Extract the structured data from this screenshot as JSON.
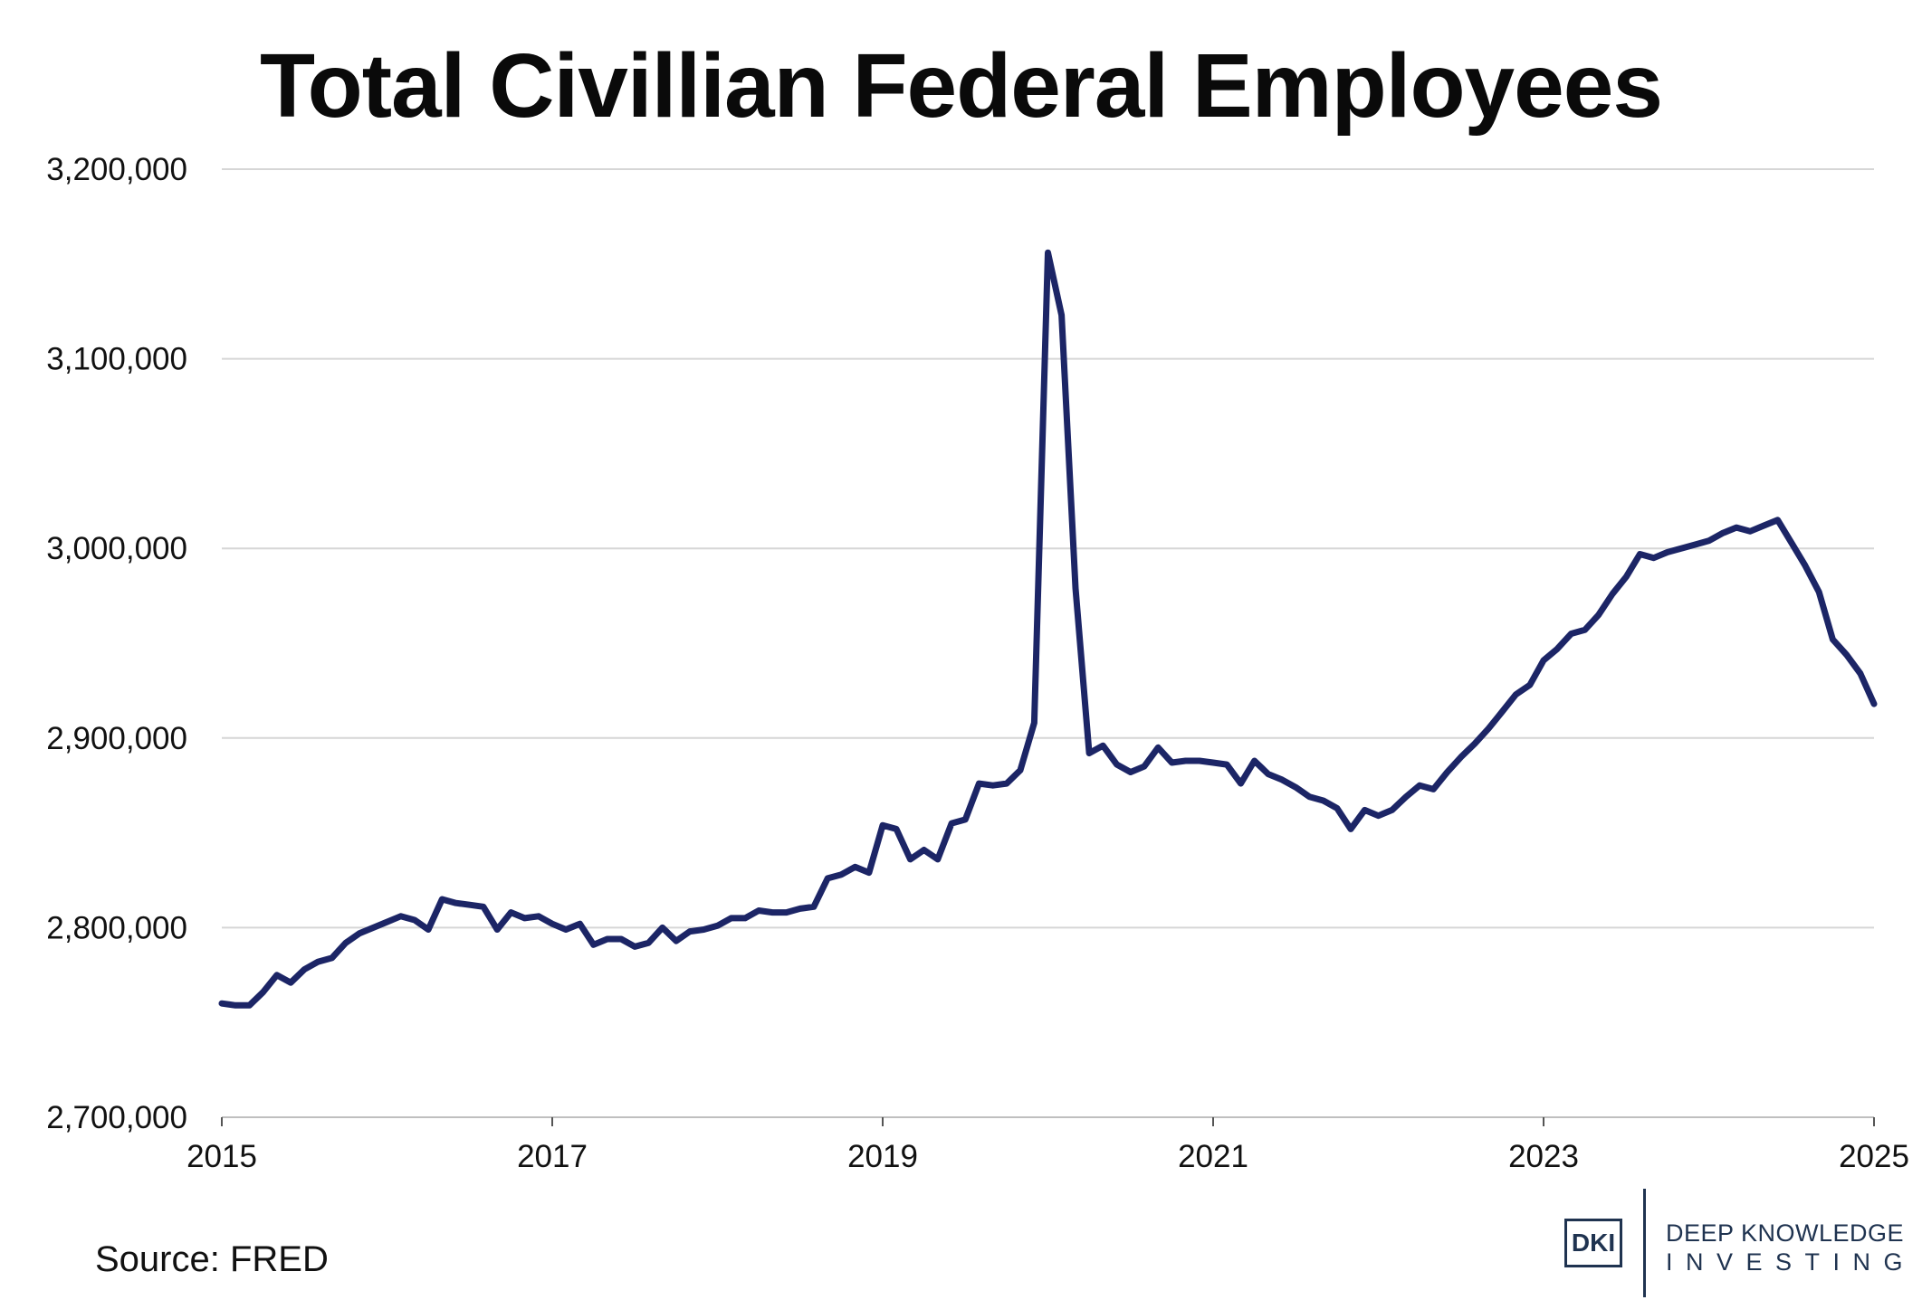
{
  "chart_data": {
    "type": "line",
    "title": "Total Civillian Federal Employees",
    "xlabel": "",
    "ylabel": "",
    "xlim": [
      2015,
      2025
    ],
    "ylim": [
      2700000,
      3200000
    ],
    "y_ticks": [
      2700000,
      2800000,
      2900000,
      3000000,
      3100000,
      3200000
    ],
    "y_tick_labels": [
      "2,700,000",
      "2,800,000",
      "2,900,000",
      "3,000,000",
      "3,100,000",
      "3,200,000"
    ],
    "x_ticks": [
      2015,
      2017,
      2019,
      2021,
      2023,
      2025
    ],
    "x_tick_labels": [
      "2015",
      "2017",
      "2019",
      "2021",
      "2023",
      "2025"
    ],
    "grid": "horizontal",
    "legend": "none",
    "line_color": "#1c2566",
    "series": [
      {
        "x": [
          2015.0,
          2015.083,
          2015.167,
          2015.25,
          2015.333,
          2015.417,
          2015.5,
          2015.583,
          2015.667,
          2015.75,
          2015.833,
          2015.917,
          2016.0,
          2016.083,
          2016.167,
          2016.25,
          2016.333,
          2016.417,
          2016.5,
          2016.583,
          2016.667,
          2016.75,
          2016.833,
          2016.917,
          2017.0,
          2017.083,
          2017.167,
          2017.25,
          2017.333,
          2017.417,
          2017.5,
          2017.583,
          2017.667,
          2017.75,
          2017.833,
          2017.917,
          2018.0,
          2018.083,
          2018.167,
          2018.25,
          2018.333,
          2018.417,
          2018.5,
          2018.583,
          2018.667,
          2018.75,
          2018.833,
          2018.917,
          2019.0,
          2019.083,
          2019.167,
          2019.25,
          2019.333,
          2019.417,
          2019.5,
          2019.583,
          2019.667,
          2019.75,
          2019.833,
          2019.917,
          2020.0,
          2020.083,
          2020.167,
          2020.25,
          2020.333,
          2020.417,
          2020.5,
          2020.583,
          2020.667,
          2020.75,
          2020.833,
          2020.917,
          2021.0,
          2021.083,
          2021.167,
          2021.25,
          2021.333,
          2021.417,
          2021.5,
          2021.583,
          2021.667,
          2021.75,
          2021.833,
          2021.917,
          2022.0,
          2022.083,
          2022.167,
          2022.25,
          2022.333,
          2022.417,
          2022.5,
          2022.583,
          2022.667,
          2022.75,
          2022.833,
          2022.917,
          2023.0,
          2023.083,
          2023.167,
          2023.25,
          2023.333,
          2023.417,
          2023.5,
          2023.583,
          2023.667,
          2023.75,
          2023.833,
          2023.917,
          2024.0,
          2024.083,
          2024.167,
          2024.25,
          2024.333,
          2024.417,
          2024.5,
          2024.583,
          2024.667,
          2024.75,
          2024.833,
          2024.917,
          2025.0
        ],
        "values": [
          2760000,
          2759000,
          2759000,
          2766000,
          2775000,
          2771000,
          2778000,
          2782000,
          2784000,
          2792000,
          2797000,
          2800000,
          2803000,
          2806000,
          2804000,
          2799000,
          2815000,
          2813000,
          2812000,
          2811000,
          2799000,
          2808000,
          2805000,
          2806000,
          2802000,
          2799000,
          2802000,
          2791000,
          2794000,
          2794000,
          2790000,
          2792000,
          2800000,
          2793000,
          2798000,
          2799000,
          2801000,
          2805000,
          2805000,
          2809000,
          2808000,
          2808000,
          2810000,
          2811000,
          2826000,
          2828000,
          2832000,
          2829000,
          2854000,
          2852000,
          2836000,
          2841000,
          2836000,
          2855000,
          2857000,
          2876000,
          2875000,
          2876000,
          2883000,
          2908000,
          3156000,
          3123000,
          2979000,
          2892000,
          2896000,
          2886000,
          2882000,
          2885000,
          2895000,
          2887000,
          2888000,
          2888000,
          2887000,
          2886000,
          2876000,
          2888000,
          2881000,
          2878000,
          2874000,
          2869000,
          2867000,
          2863000,
          2852000,
          2862000,
          2859000,
          2862000,
          2869000,
          2875000,
          2873000,
          2882000,
          2890000,
          2897000,
          2905000,
          2914000,
          2923000,
          2928000,
          2941000,
          2947000,
          2955000,
          2957000,
          2965000,
          2976000,
          2985000,
          2997000,
          2995000,
          2998000,
          3000000,
          3002000,
          3004000,
          3008000,
          3011000,
          3009000,
          3012000,
          3015000,
          3003000,
          2991000,
          2977000,
          2952000,
          2944000,
          2934000,
          2918000
        ]
      }
    ]
  },
  "source_text": "Source: FRED",
  "logo": {
    "mark": "DKI",
    "line1": "DEEP KNOWLEDGE",
    "line2": "INVESTING",
    "color": "#1f3350"
  }
}
